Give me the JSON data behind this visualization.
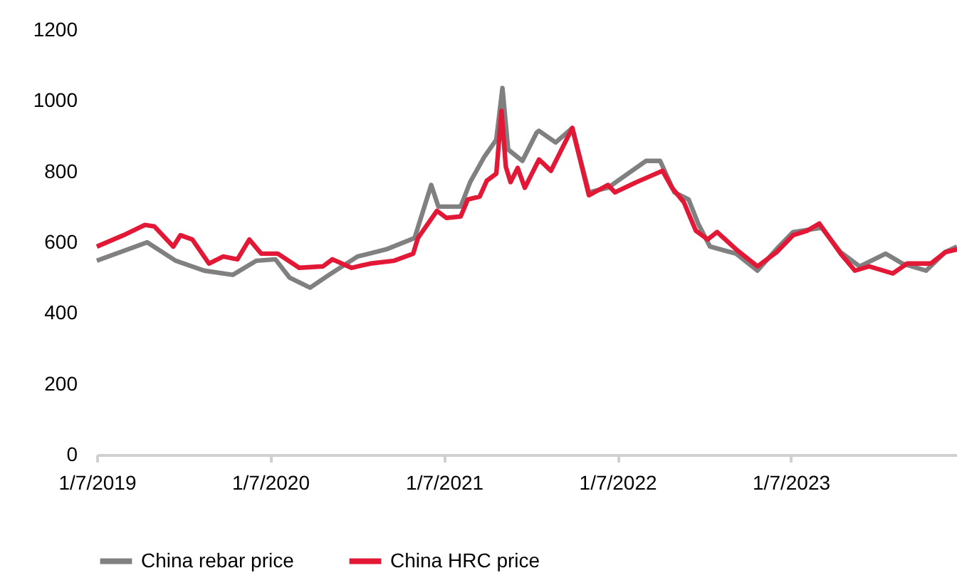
{
  "chart_data": {
    "type": "line",
    "xlim": [
      "2019-01-07",
      "2023-12-23"
    ],
    "ylim": [
      0,
      1200
    ],
    "yticks": [
      0,
      200,
      400,
      600,
      800,
      1000,
      1200
    ],
    "xticks": [
      {
        "value": "2019-01-07",
        "label": "1/7/2019"
      },
      {
        "value": "2020-01-07",
        "label": "1/7/2020"
      },
      {
        "value": "2021-01-07",
        "label": "1/7/2021"
      },
      {
        "value": "2022-01-07",
        "label": "1/7/2022"
      },
      {
        "value": "2023-01-07",
        "label": "1/7/2023"
      }
    ],
    "grid": false,
    "legend": "bottom",
    "line_style": "solid",
    "marker": "none",
    "series": [
      {
        "name": "China rebar price",
        "color": "#808080",
        "x": [
          "2019-01-07",
          "2019-04-23",
          "2019-06-22",
          "2019-08-21",
          "2019-10-20",
          "2019-12-09",
          "2020-01-18",
          "2020-02-17",
          "2020-03-31",
          "2020-05-10",
          "2020-07-09",
          "2020-09-07",
          "2020-11-06",
          "2020-12-11",
          "2020-12-26",
          "2021-02-11",
          "2021-03-03",
          "2021-04-02",
          "2021-04-27",
          "2021-05-10",
          "2021-05-22",
          "2021-06-21",
          "2021-07-21",
          "2021-07-26",
          "2021-08-30",
          "2021-10-04",
          "2021-11-08",
          "2021-12-18",
          "2022-03-08",
          "2022-04-07",
          "2022-05-07",
          "2022-06-06",
          "2022-06-26",
          "2022-07-21",
          "2022-09-14",
          "2022-10-29",
          "2022-12-13",
          "2023-01-12",
          "2023-03-13",
          "2023-04-22",
          "2023-06-01",
          "2023-07-26",
          "2023-08-30",
          "2023-10-19",
          "2023-11-28",
          "2023-12-23"
        ],
        "values": [
          548,
          600,
          548,
          520,
          508,
          548,
          552,
          500,
          472,
          508,
          560,
          580,
          612,
          762,
          701,
          701,
          770,
          842,
          890,
          1036,
          862,
          830,
          910,
          915,
          882,
          923,
          741,
          754,
          830,
          830,
          741,
          721,
          653,
          588,
          568,
          520,
          588,
          629,
          641,
          572,
          532,
          568,
          540,
          520,
          572,
          588
        ]
      },
      {
        "name": "China HRC price",
        "color": "#e31837",
        "x": [
          "2019-01-07",
          "2019-03-04",
          "2019-04-18",
          "2019-05-08",
          "2019-06-17",
          "2019-07-02",
          "2019-07-27",
          "2019-08-31",
          "2019-09-30",
          "2019-10-30",
          "2019-11-24",
          "2019-12-19",
          "2020-01-23",
          "2020-03-08",
          "2020-04-27",
          "2020-05-17",
          "2020-06-26",
          "2020-08-05",
          "2020-09-24",
          "2020-11-03",
          "2020-11-13",
          "2020-12-23",
          "2021-01-12",
          "2021-02-11",
          "2021-02-26",
          "2021-03-23",
          "2021-04-07",
          "2021-04-27",
          "2021-05-08",
          "2021-05-17",
          "2021-05-27",
          "2021-06-11",
          "2021-06-26",
          "2021-07-26",
          "2021-08-20",
          "2021-10-04",
          "2021-11-08",
          "2021-12-18",
          "2022-01-02",
          "2022-02-16",
          "2022-04-12",
          "2022-05-02",
          "2022-05-27",
          "2022-06-21",
          "2022-07-16",
          "2022-08-05",
          "2022-09-14",
          "2022-10-29",
          "2022-12-08",
          "2023-01-12",
          "2023-02-11",
          "2023-03-08",
          "2023-04-22",
          "2023-05-22",
          "2023-06-21",
          "2023-08-10",
          "2023-09-09",
          "2023-10-29",
          "2023-11-28",
          "2023-12-23"
        ],
        "values": [
          588,
          620,
          649,
          645,
          588,
          620,
          608,
          540,
          560,
          552,
          608,
          568,
          568,
          528,
          532,
          552,
          528,
          540,
          548,
          568,
          612,
          689,
          669,
          673,
          721,
          729,
          774,
          794,
          971,
          814,
          770,
          810,
          754,
          834,
          802,
          923,
          733,
          762,
          741,
          770,
          802,
          754,
          713,
          633,
          608,
          629,
          580,
          532,
          572,
          620,
          633,
          653,
          568,
          520,
          532,
          512,
          540,
          540,
          572,
          580
        ]
      }
    ]
  }
}
